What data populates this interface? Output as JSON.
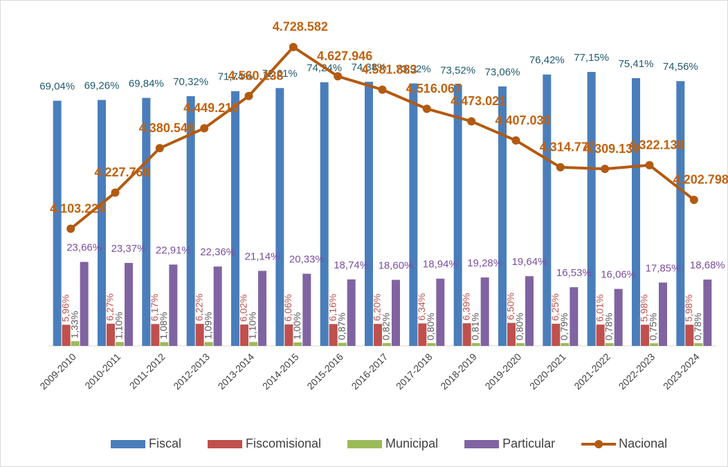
{
  "chart_data": {
    "type": "bar-line",
    "categories": [
      "2009-2010",
      "2010-2011",
      "2011-2012",
      "2012-2013",
      "2013-2014",
      "2014-2015",
      "2015-2016",
      "2016-2017",
      "2017-2018",
      "2018-2019",
      "2019-2020",
      "2020-2021",
      "2021-2022",
      "2022-2023",
      "2023-2024"
    ],
    "series": [
      {
        "name": "Fiscal",
        "type": "bar",
        "color": "#4a7ebb",
        "label_color": "#215a6e",
        "values": [
          69.04,
          69.26,
          69.84,
          70.32,
          71.74,
          72.61,
          74.24,
          74.38,
          73.92,
          73.52,
          73.06,
          76.42,
          77.15,
          75.41,
          74.56
        ],
        "value_labels": [
          "69,04%",
          "69,26%",
          "69,84%",
          "70,32%",
          "71,74%",
          "72,61%",
          "74,24%",
          "74,38%",
          "73,92%",
          "73,52%",
          "73,06%",
          "76,42%",
          "77,15%",
          "75,41%",
          "74,56%"
        ]
      },
      {
        "name": "Fiscomisional",
        "type": "bar",
        "color": "#c0504d",
        "label_color": "#c0504d",
        "values": [
          5.96,
          6.27,
          6.17,
          6.22,
          6.02,
          6.06,
          6.16,
          6.2,
          6.34,
          6.39,
          6.5,
          6.25,
          6.01,
          5.98,
          5.98
        ],
        "value_labels": [
          "5,96%",
          "6,27%",
          "6,17%",
          "6,22%",
          "6,02%",
          "6,06%",
          "6,16%",
          "6,20%",
          "6,34%",
          "6,39%",
          "6,50%",
          "6,25%",
          "6,01%",
          "5,98%",
          "5,98%"
        ]
      },
      {
        "name": "Municipal",
        "type": "bar",
        "color": "#9bbb59",
        "label_color": "#595959",
        "values": [
          1.33,
          1.1,
          1.08,
          1.09,
          1.1,
          1.0,
          0.87,
          0.82,
          0.8,
          0.81,
          0.8,
          0.79,
          0.78,
          0.75,
          0.78
        ],
        "value_labels": [
          "1,33%",
          "1,10%",
          "1,08%",
          "1,09%",
          "1,10%",
          "1,00%",
          "0,87%",
          "0,82%",
          "0,80%",
          "0,81%",
          "0,80%",
          "0,79%",
          "0,78%",
          "0,75%",
          "0,78%"
        ]
      },
      {
        "name": "Particular",
        "type": "bar",
        "color": "#8064a2",
        "label_color": "#7a4ea0",
        "values": [
          23.66,
          23.37,
          22.91,
          22.36,
          21.14,
          20.33,
          18.74,
          18.6,
          18.94,
          19.28,
          19.64,
          16.53,
          16.06,
          17.85,
          18.68
        ],
        "value_labels": [
          "23,66%",
          "23,37%",
          "22,91%",
          "22,36%",
          "21,14%",
          "20,33%",
          "18,74%",
          "18,60%",
          "18,94%",
          "19,28%",
          "19,64%",
          "16,53%",
          "16,06%",
          "17,85%",
          "18,68%"
        ]
      },
      {
        "name": "Nacional",
        "type": "line",
        "axis": "y2",
        "color": "#b35a10",
        "label_color": "#c0620f",
        "values": [
          4103224,
          4227768,
          4380546,
          4449216,
          4560138,
          4728582,
          4627946,
          4581883,
          4516067,
          4473021,
          4407030,
          4314777,
          4309139,
          4322138,
          4202798
        ],
        "value_labels": [
          "4.103.224",
          "4.227.768",
          "4.380.546",
          "4.449.216",
          "4.560.138",
          "4.728.582",
          "4.627.946",
          "4.581.883",
          "4.516.067",
          "4.473.021",
          "4.407.030",
          "4.314.777",
          "4.309.139",
          "4.322.138",
          "4.202.798"
        ]
      }
    ],
    "ylim": [
      0,
      90
    ],
    "y2lim": [
      3700000,
      4800000
    ],
    "legend": "bottom"
  }
}
